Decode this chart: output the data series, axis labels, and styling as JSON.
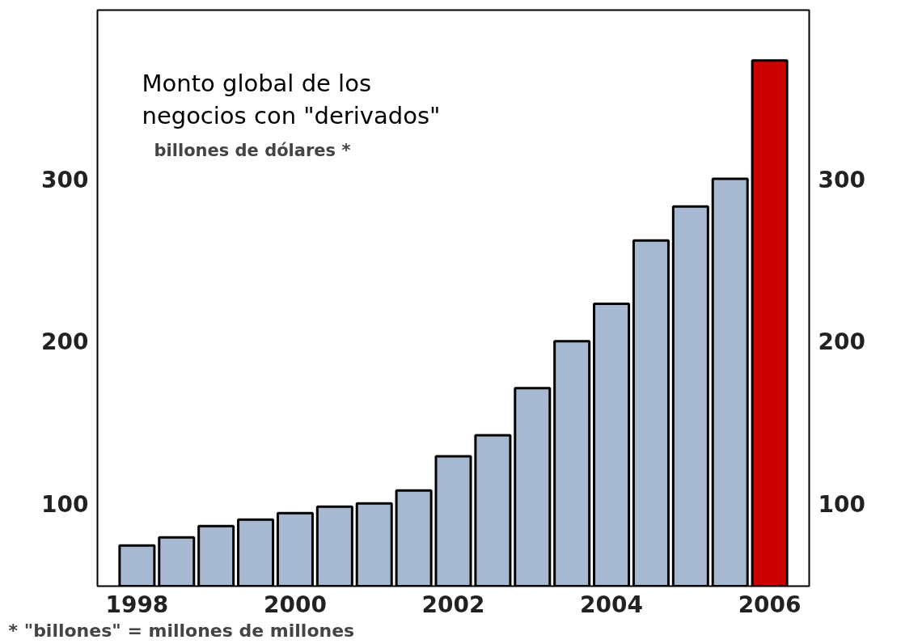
{
  "chart_data": {
    "type": "bar",
    "title": "Monto global de los\nnegocios con \"derivados\"",
    "subtitle": "billones de dólares *",
    "annotations": [
      "* \"billones\" = millones de millones"
    ],
    "x": [
      1998,
      1998.5,
      1999,
      1999.5,
      2000,
      2000.5,
      2001,
      2001.5,
      2002,
      2002.5,
      2003,
      2003.5,
      2004,
      2004.5,
      2005,
      2005.5,
      2006
    ],
    "values": [
      74,
      79,
      86,
      90,
      94,
      98,
      100,
      108,
      129,
      142,
      171,
      200,
      223,
      262,
      283,
      300,
      373
    ],
    "colors": [
      "#a7b8d1",
      "#a7b8d1",
      "#a7b8d1",
      "#a7b8d1",
      "#a7b8d1",
      "#a7b8d1",
      "#a7b8d1",
      "#a7b8d1",
      "#a7b8d1",
      "#a7b8d1",
      "#a7b8d1",
      "#a7b8d1",
      "#a7b8d1",
      "#a7b8d1",
      "#a7b8d1",
      "#a7b8d1",
      "#cc0000"
    ],
    "xlim": [
      1997.5,
      2006.5
    ],
    "xticks": [
      1998,
      2000,
      2002,
      2004,
      2006
    ],
    "ylim": [
      49,
      404
    ],
    "yticks": [
      100,
      200,
      300
    ],
    "y2lim": [
      49,
      404
    ],
    "y2ticks": [
      100,
      200,
      300
    ],
    "grid": false
  }
}
